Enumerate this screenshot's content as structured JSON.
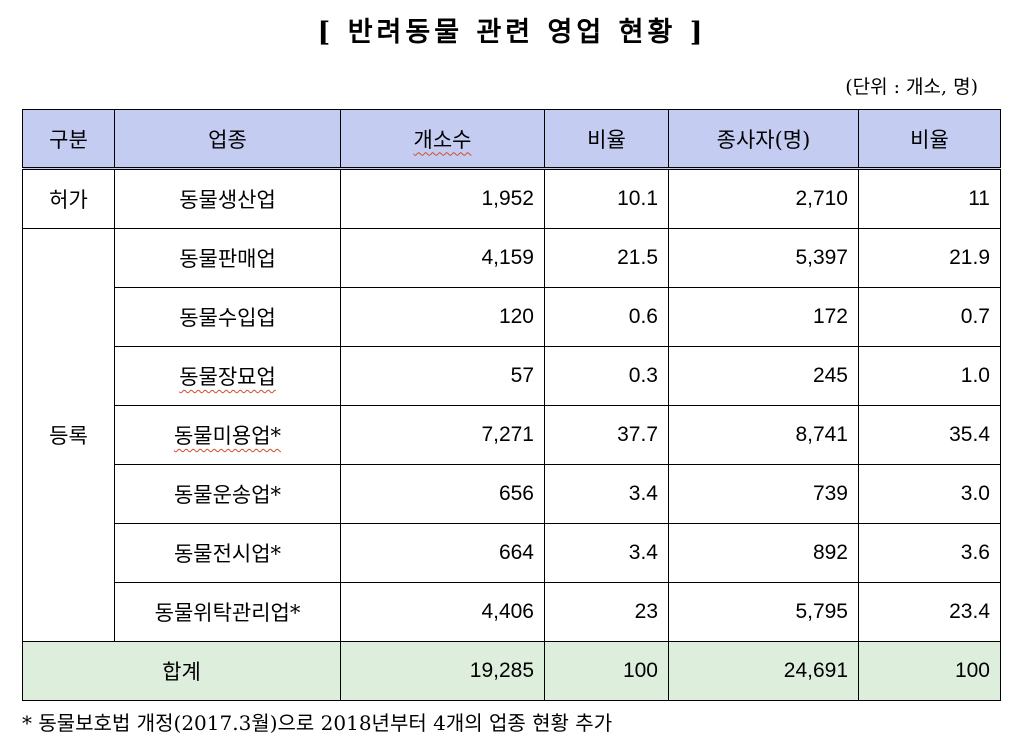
{
  "title": "[ 반려동물 관련 영업 현황 ]",
  "unit": "(단위 : 개소, 명)",
  "headers": [
    "구분",
    "업종",
    "개소수",
    "비율",
    "종사자(명)",
    "비율"
  ],
  "permit": {
    "category": "허가",
    "row": {
      "name": "동물생산업",
      "count": "1,952",
      "ratio": "10.1",
      "workers": "2,710",
      "wratio": "11"
    }
  },
  "register": {
    "category": "등록",
    "rows": [
      {
        "name": "동물판매업",
        "count": "4,159",
        "ratio": "21.5",
        "workers": "5,397",
        "wratio": "21.9"
      },
      {
        "name": "동물수입업",
        "count": "120",
        "ratio": "0.6",
        "workers": "172",
        "wratio": "0.7"
      },
      {
        "name": "동물장묘업",
        "count": "57",
        "ratio": "0.3",
        "workers": "245",
        "wratio": "1.0"
      },
      {
        "name": "동물미용업*",
        "count": "7,271",
        "ratio": "37.7",
        "workers": "8,741",
        "wratio": "35.4"
      },
      {
        "name": "동물운송업*",
        "count": "656",
        "ratio": "3.4",
        "workers": "739",
        "wratio": "3.0"
      },
      {
        "name": "동물전시업*",
        "count": "664",
        "ratio": "3.4",
        "workers": "892",
        "wratio": "3.6"
      },
      {
        "name": "동물위탁관리업*",
        "count": "4,406",
        "ratio": "23",
        "workers": "5,795",
        "wratio": "23.4"
      }
    ]
  },
  "total": {
    "label": "합계",
    "count": "19,285",
    "ratio": "100",
    "workers": "24,691",
    "wratio": "100"
  },
  "footnote": "* 동물보호법 개정(2017.3월)으로 2018년부터 4개의 업종 현황 추가"
}
